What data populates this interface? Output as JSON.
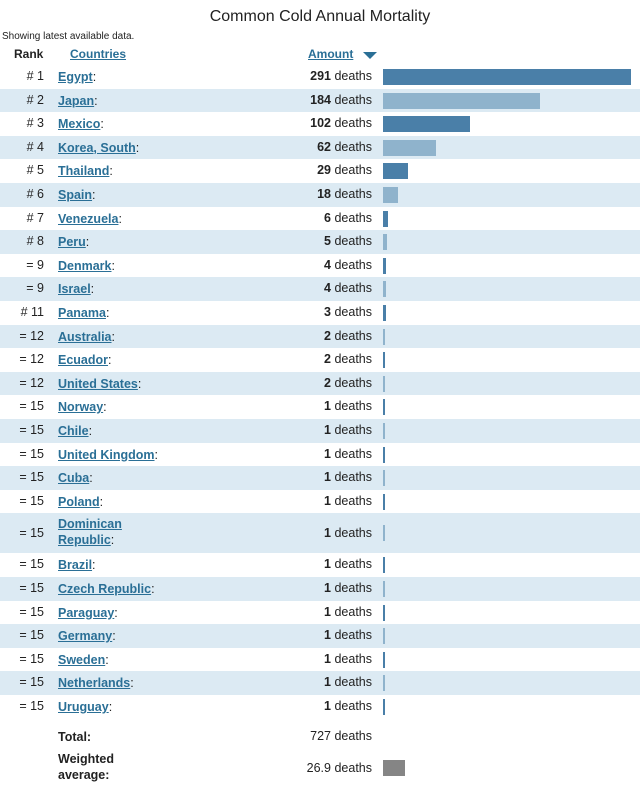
{
  "chart_data": {
    "type": "bar",
    "title": "Common Cold Annual Mortality",
    "note": "Showing latest available data.",
    "columns": {
      "rank": "Rank",
      "country": "Countries",
      "amount": "Amount"
    },
    "unit": "deaths",
    "sort": "descending by amount",
    "rows": [
      {
        "rank": "# 1",
        "country": "Egypt",
        "value": 291
      },
      {
        "rank": "# 2",
        "country": "Japan",
        "value": 184
      },
      {
        "rank": "# 3",
        "country": "Mexico",
        "value": 102
      },
      {
        "rank": "# 4",
        "country": "Korea, South",
        "value": 62
      },
      {
        "rank": "# 5",
        "country": "Thailand",
        "value": 29
      },
      {
        "rank": "# 6",
        "country": "Spain",
        "value": 18
      },
      {
        "rank": "# 7",
        "country": "Venezuela",
        "value": 6
      },
      {
        "rank": "# 8",
        "country": "Peru",
        "value": 5
      },
      {
        "rank": "= 9",
        "country": "Denmark",
        "value": 4
      },
      {
        "rank": "= 9",
        "country": "Israel",
        "value": 4
      },
      {
        "rank": "# 11",
        "country": "Panama",
        "value": 3
      },
      {
        "rank": "= 12",
        "country": "Australia",
        "value": 2
      },
      {
        "rank": "= 12",
        "country": "Ecuador",
        "value": 2
      },
      {
        "rank": "= 12",
        "country": "United States",
        "value": 2
      },
      {
        "rank": "= 15",
        "country": "Norway",
        "value": 1
      },
      {
        "rank": "= 15",
        "country": "Chile",
        "value": 1
      },
      {
        "rank": "= 15",
        "country": "United Kingdom",
        "value": 1
      },
      {
        "rank": "= 15",
        "country": "Cuba",
        "value": 1
      },
      {
        "rank": "= 15",
        "country": "Poland",
        "value": 1
      },
      {
        "rank": "= 15",
        "country": "Dominican Republic",
        "value": 1
      },
      {
        "rank": "= 15",
        "country": "Brazil",
        "value": 1
      },
      {
        "rank": "= 15",
        "country": "Czech Republic",
        "value": 1
      },
      {
        "rank": "= 15",
        "country": "Paraguay",
        "value": 1
      },
      {
        "rank": "= 15",
        "country": "Germany",
        "value": 1
      },
      {
        "rank": "= 15",
        "country": "Sweden",
        "value": 1
      },
      {
        "rank": "= 15",
        "country": "Netherlands",
        "value": 1
      },
      {
        "rank": "= 15",
        "country": "Uruguay",
        "value": 1
      }
    ],
    "total": {
      "label": "Total:",
      "value": "727 deaths"
    },
    "weighted_average": {
      "label": "Weighted average:",
      "value": "26.9 deaths"
    },
    "colors": {
      "bar_dark": "#4a7fa8",
      "bar_light": "#8fb3cc",
      "row_alt": "#dceaf3",
      "link": "#2a6f96",
      "average_box": "#858585"
    }
  }
}
